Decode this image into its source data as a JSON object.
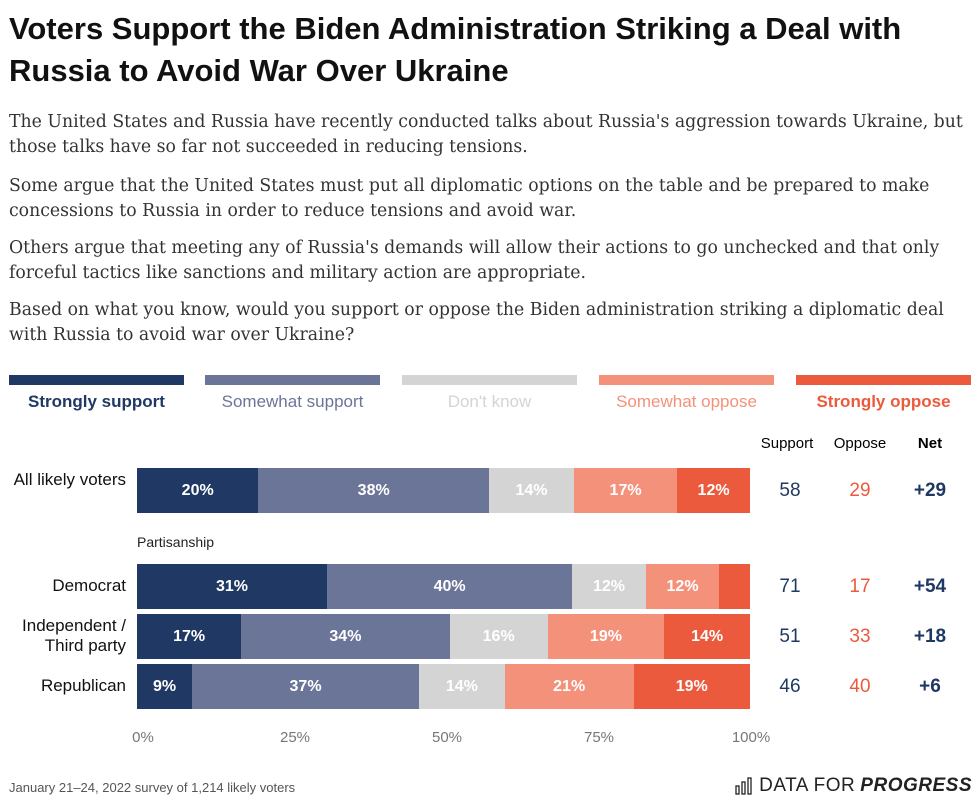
{
  "title": "Voters Support the Biden Administration Striking a Deal with Russia to Avoid War Over Ukraine",
  "paragraphs": [
    "The United States and Russia have recently conducted talks about Russia's aggression towards Ukraine, but those talks have so far not succeeded in reducing tensions.",
    "Some argue that the United States must put all diplomatic options on the table and be prepared to make concessions to Russia in order to reduce tensions and avoid war.",
    "Others argue that meeting any of Russia's demands will allow their actions to go unchecked and that only forceful tactics like sanctions and military action are appropriate.",
    "Based on what you know, would you support or oppose the Biden administration striking a diplomatic deal with Russia to avoid war over Ukraine?"
  ],
  "colors": {
    "strongly_support": "#1f3864",
    "somewhat_support": "#6b7598",
    "dont_know": "#d4d4d4",
    "somewhat_oppose": "#f4917a",
    "strongly_oppose": "#ec5a3e",
    "support_text": "#1f3864",
    "oppose_text": "#ec5a3e"
  },
  "chart_data": {
    "type": "bar",
    "orientation": "horizontal",
    "stacked": true,
    "legend": [
      "Strongly support",
      "Somewhat support",
      "Don't know",
      "Somewhat oppose",
      "Strongly oppose"
    ],
    "legend_position": "top",
    "rows": [
      {
        "label": "All likely voters",
        "values": [
          20,
          38,
          14,
          17,
          12
        ],
        "labels": [
          "20%",
          "38%",
          "14%",
          "17%",
          "12%"
        ],
        "support": "58",
        "oppose": "29",
        "net": "+29"
      },
      {
        "label": "Democrat",
        "values": [
          31,
          40,
          12,
          12,
          5
        ],
        "labels": [
          "31%",
          "40%",
          "12%",
          "12%",
          ""
        ],
        "support": "71",
        "oppose": "17",
        "net": "+54"
      },
      {
        "label": "Independent / Third party",
        "values": [
          17,
          34,
          16,
          19,
          14
        ],
        "labels": [
          "17%",
          "34%",
          "16%",
          "19%",
          "14%"
        ],
        "support": "51",
        "oppose": "33",
        "net": "+18"
      },
      {
        "label": "Republican",
        "values": [
          9,
          37,
          14,
          21,
          19
        ],
        "labels": [
          "9%",
          "37%",
          "14%",
          "21%",
          "19%"
        ],
        "support": "46",
        "oppose": "40",
        "net": "+6"
      }
    ],
    "subheading": "Partisanship",
    "column_headers": {
      "support": "Support",
      "oppose": "Oppose",
      "net": "Net"
    },
    "x_ticks": [
      "0%",
      "25%",
      "50%",
      "75%",
      "100%"
    ],
    "xlim": [
      0,
      100
    ],
    "grid": false
  },
  "footer": "January 21–24, 2022 survey of 1,214 likely voters",
  "brand": {
    "light": "DATA FOR",
    "bold": "PROGRESS"
  }
}
